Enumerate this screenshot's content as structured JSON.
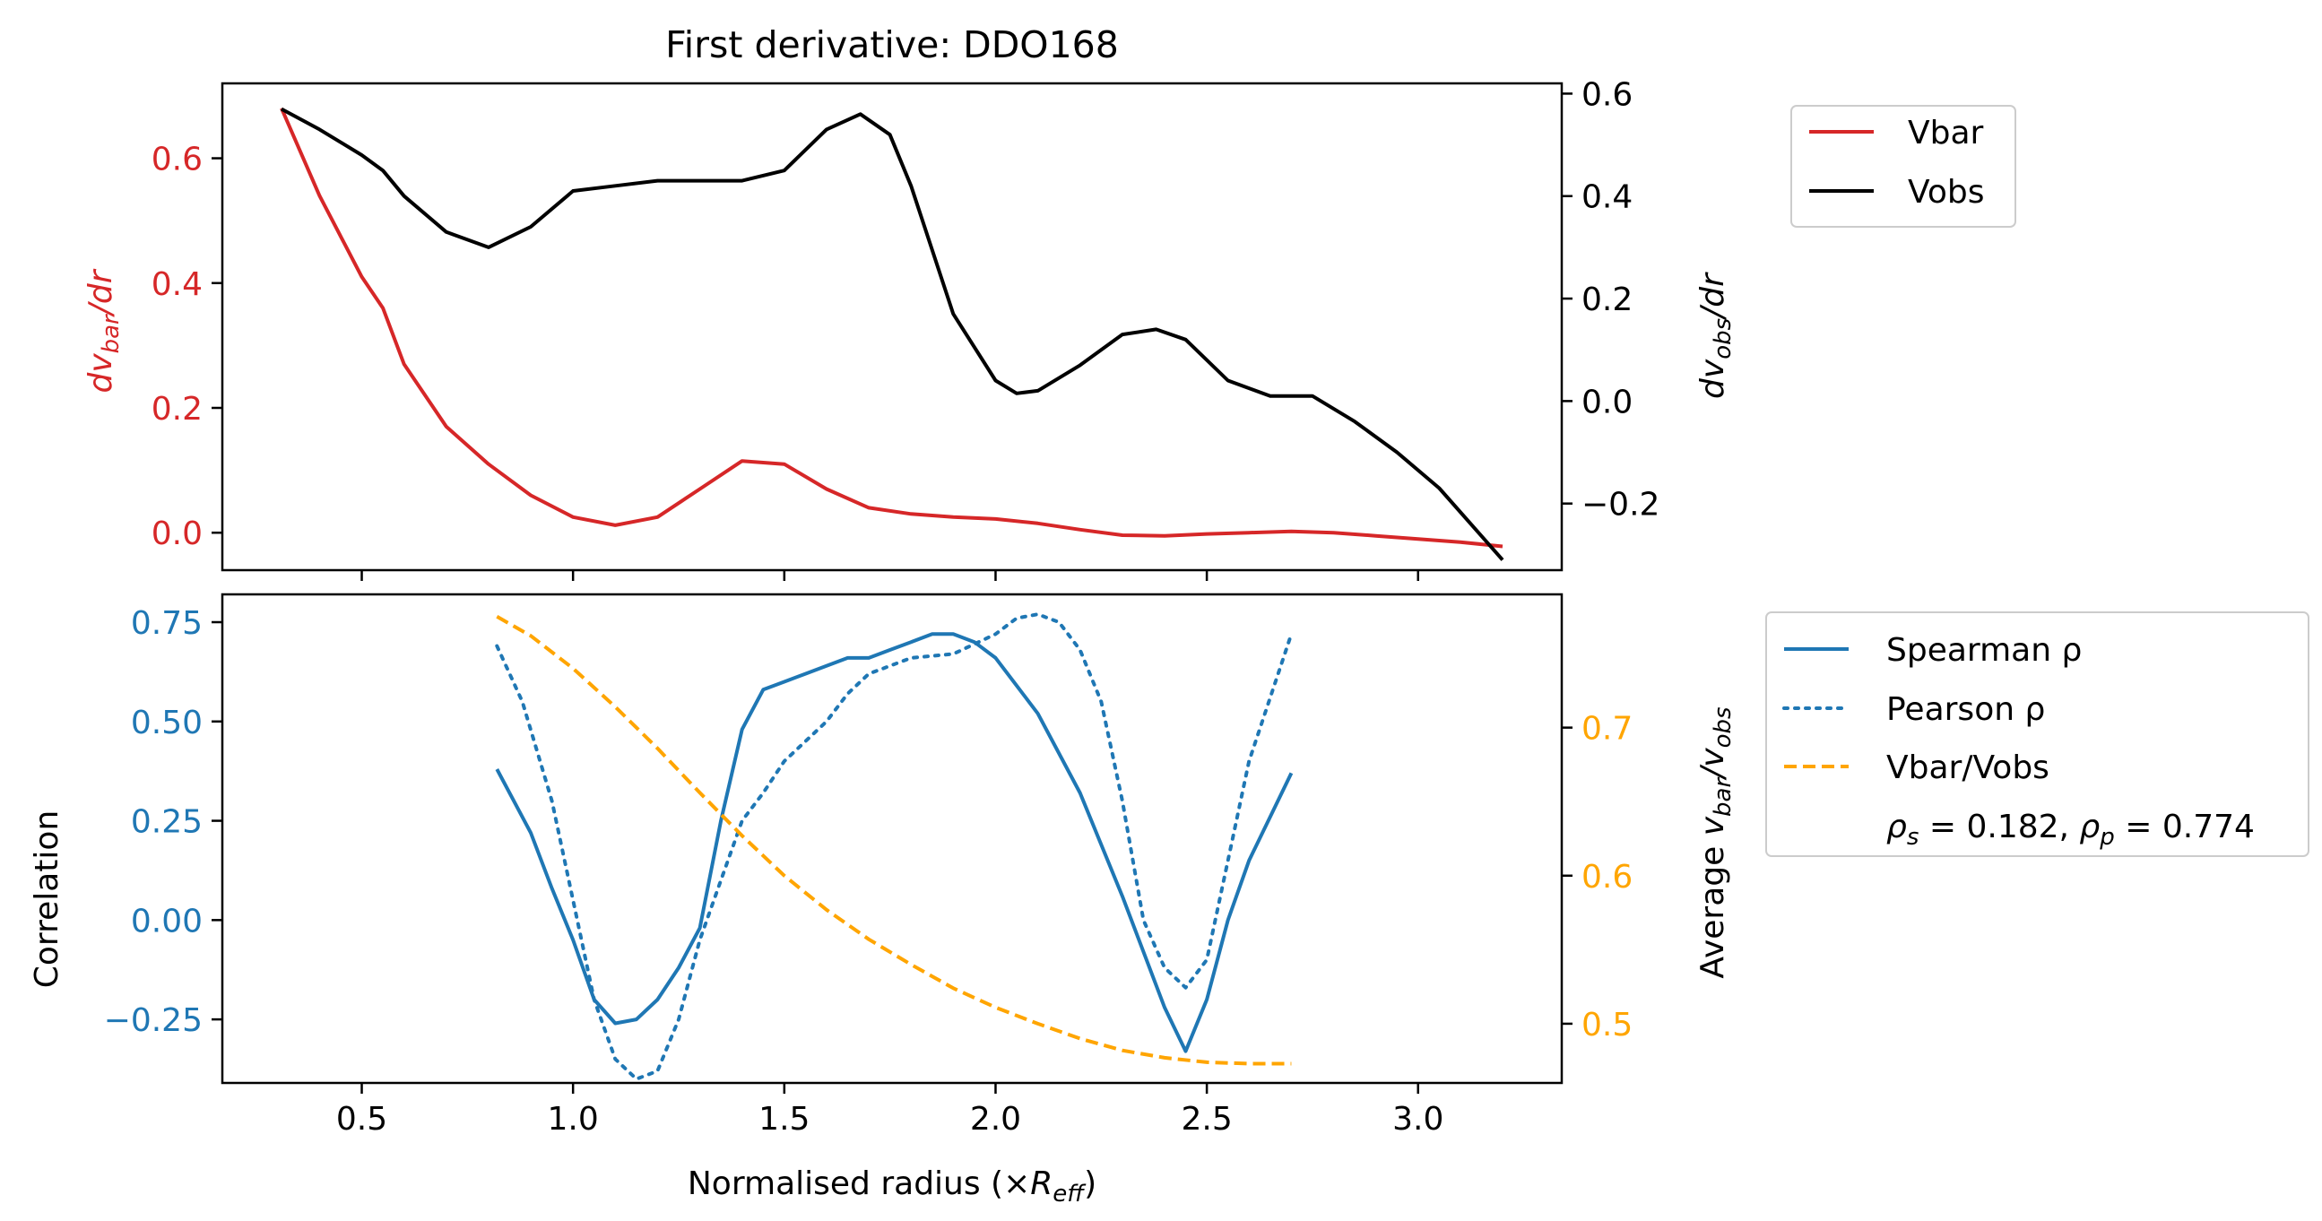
{
  "chart_data": [
    {
      "type": "line",
      "title": "First derivative: DDO168",
      "xlim": [
        0.17,
        3.34
      ],
      "ylabel_left": "dv_bar/dr",
      "ylabel_right": "dv_obs/dr",
      "ylim_left": [
        -0.06,
        0.72
      ],
      "ylim_right": [
        -0.33,
        0.62
      ],
      "yticks_left": [
        "0.0",
        "0.2",
        "0.4",
        "0.6"
      ],
      "yticks_right": [
        "−0.2",
        "0.0",
        "0.2",
        "0.4",
        "0.6"
      ],
      "legend_placement": "outside-right",
      "series": [
        {
          "name": "Vbar",
          "axis": "left",
          "color": "#d62728",
          "x": [
            0.31,
            0.4,
            0.5,
            0.55,
            0.6,
            0.7,
            0.8,
            0.9,
            1.0,
            1.1,
            1.2,
            1.3,
            1.4,
            1.5,
            1.6,
            1.7,
            1.8,
            1.9,
            2.0,
            2.1,
            2.2,
            2.3,
            2.4,
            2.5,
            2.6,
            2.7,
            2.8,
            2.9,
            3.0,
            3.1,
            3.2
          ],
          "values": [
            0.68,
            0.54,
            0.41,
            0.36,
            0.27,
            0.17,
            0.11,
            0.06,
            0.025,
            0.012,
            0.025,
            0.07,
            0.115,
            0.11,
            0.07,
            0.04,
            0.03,
            0.025,
            0.022,
            0.015,
            0.005,
            -0.004,
            -0.005,
            -0.002,
            0.0,
            0.002,
            0.0,
            -0.005,
            -0.01,
            -0.015,
            -0.022
          ]
        },
        {
          "name": "Vobs",
          "axis": "right",
          "color": "#000000",
          "x": [
            0.31,
            0.4,
            0.5,
            0.55,
            0.6,
            0.7,
            0.8,
            0.9,
            1.0,
            1.1,
            1.2,
            1.3,
            1.4,
            1.5,
            1.6,
            1.68,
            1.75,
            1.8,
            1.9,
            2.0,
            2.05,
            2.1,
            2.2,
            2.3,
            2.38,
            2.45,
            2.55,
            2.65,
            2.75,
            2.85,
            2.95,
            3.05,
            3.2
          ],
          "values": [
            0.57,
            0.53,
            0.48,
            0.45,
            0.4,
            0.33,
            0.3,
            0.34,
            0.41,
            0.42,
            0.43,
            0.43,
            0.43,
            0.45,
            0.53,
            0.56,
            0.52,
            0.42,
            0.17,
            0.04,
            0.015,
            0.02,
            0.07,
            0.13,
            0.14,
            0.12,
            0.04,
            0.01,
            0.01,
            -0.04,
            -0.1,
            -0.17,
            -0.31
          ]
        }
      ],
      "legend": [
        "Vbar",
        "Vobs"
      ]
    },
    {
      "type": "line",
      "xlabel": "Normalised radius (×R_eff)",
      "xlim": [
        0.17,
        3.34
      ],
      "xticks": [
        "0.5",
        "1.0",
        "1.5",
        "2.0",
        "2.5",
        "3.0"
      ],
      "xtick_values": [
        0.5,
        1.0,
        1.5,
        2.0,
        2.5,
        3.0
      ],
      "ylabel_left": "Correlation",
      "ylabel_right": "Average v_bar/v_obs",
      "ylim_left": [
        -0.41,
        0.82
      ],
      "ylim_right": [
        0.46,
        0.79
      ],
      "yticks_left": [
        "−0.25",
        "0.00",
        "0.25",
        "0.50",
        "0.75"
      ],
      "yticks_right": [
        "0.5",
        "0.6",
        "0.7"
      ],
      "legend_placement": "outside-right",
      "series": [
        {
          "name": "Spearman ρ",
          "axis": "left",
          "color": "#1f77b4",
          "style": "solid",
          "x": [
            0.82,
            0.9,
            0.95,
            1.0,
            1.05,
            1.1,
            1.15,
            1.2,
            1.25,
            1.3,
            1.35,
            1.4,
            1.45,
            1.5,
            1.55,
            1.6,
            1.65,
            1.7,
            1.75,
            1.8,
            1.85,
            1.9,
            1.95,
            2.0,
            2.1,
            2.2,
            2.3,
            2.4,
            2.45,
            2.5,
            2.55,
            2.6,
            2.7
          ],
          "values": [
            0.38,
            0.22,
            0.08,
            -0.05,
            -0.2,
            -0.26,
            -0.25,
            -0.2,
            -0.12,
            -0.02,
            0.25,
            0.48,
            0.58,
            0.6,
            0.62,
            0.64,
            0.66,
            0.66,
            0.68,
            0.7,
            0.72,
            0.72,
            0.7,
            0.66,
            0.52,
            0.32,
            0.06,
            -0.22,
            -0.33,
            -0.2,
            0.0,
            0.15,
            0.37
          ]
        },
        {
          "name": "Pearson ρ",
          "axis": "left",
          "color": "#1f77b4",
          "style": "dotted",
          "x": [
            0.82,
            0.88,
            0.95,
            1.0,
            1.05,
            1.1,
            1.15,
            1.2,
            1.25,
            1.3,
            1.35,
            1.4,
            1.45,
            1.5,
            1.55,
            1.6,
            1.65,
            1.7,
            1.75,
            1.8,
            1.9,
            2.0,
            2.05,
            2.1,
            2.15,
            2.2,
            2.25,
            2.3,
            2.35,
            2.4,
            2.45,
            2.5,
            2.55,
            2.6,
            2.7
          ],
          "values": [
            0.69,
            0.55,
            0.3,
            0.05,
            -0.2,
            -0.35,
            -0.4,
            -0.38,
            -0.25,
            -0.05,
            0.1,
            0.25,
            0.32,
            0.4,
            0.45,
            0.5,
            0.57,
            0.62,
            0.64,
            0.66,
            0.67,
            0.72,
            0.76,
            0.77,
            0.75,
            0.68,
            0.55,
            0.3,
            0.0,
            -0.12,
            -0.17,
            -0.1,
            0.15,
            0.4,
            0.72
          ]
        },
        {
          "name": "Vbar/Vobs",
          "axis": "right",
          "color": "#ffa500",
          "style": "dashed",
          "x": [
            0.82,
            0.9,
            1.0,
            1.1,
            1.2,
            1.3,
            1.4,
            1.5,
            1.6,
            1.7,
            1.8,
            1.9,
            2.0,
            2.1,
            2.2,
            2.3,
            2.4,
            2.5,
            2.6,
            2.7
          ],
          "values": [
            0.775,
            0.762,
            0.74,
            0.714,
            0.686,
            0.656,
            0.627,
            0.6,
            0.577,
            0.557,
            0.54,
            0.524,
            0.511,
            0.5,
            0.49,
            0.482,
            0.477,
            0.474,
            0.473,
            0.473
          ]
        }
      ],
      "legend": [
        "Spearman ρ",
        "Pearson ρ",
        "Vbar/Vobs"
      ],
      "annotation": {
        "rho_s_value": "0.182",
        "rho_p_value": "0.774"
      }
    }
  ],
  "colors": {
    "vbar": "#d62728",
    "vobs": "#000000",
    "corr": "#1f77b4",
    "ratio": "#ffa500"
  }
}
